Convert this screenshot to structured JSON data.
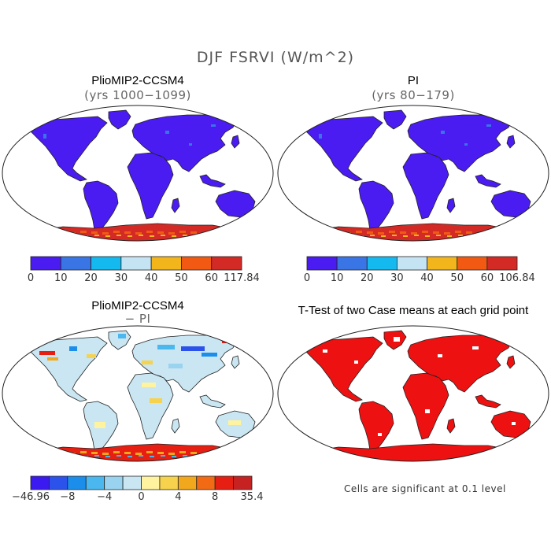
{
  "figure": {
    "title": "DJF FSRVI (W/m^2)",
    "note": "Cells are significant at 0.1 level"
  },
  "chart_data": [
    {
      "type": "heatmap",
      "title": "PlioMIP2-CCSM4",
      "subtitle": "(yrs 1000−1099)",
      "colorbar": {
        "tick_labels": [
          "0",
          "10",
          "20",
          "30",
          "40",
          "50",
          "60",
          "117.84"
        ],
        "colors": [
          "#4a1cf2",
          "#3a75e6",
          "#14b9ef",
          "#c5e4f3",
          "#f2b51c",
          "#f25a13",
          "#d42a26"
        ],
        "range": [
          0,
          117.84
        ]
      },
      "land_color": "#4a1cf2",
      "antarctica_colors": [
        "#d42a26",
        "#f25a13",
        "#f2b51c"
      ]
    },
    {
      "type": "heatmap",
      "title": "PI",
      "subtitle": "(yrs 80−179)",
      "colorbar": {
        "tick_labels": [
          "0",
          "10",
          "20",
          "30",
          "40",
          "50",
          "60",
          "106.84"
        ],
        "colors": [
          "#4a1cf2",
          "#3a75e6",
          "#14b9ef",
          "#c5e4f3",
          "#f2b51c",
          "#f25a13",
          "#d42a26"
        ],
        "range": [
          0,
          106.84
        ]
      },
      "land_color": "#4a1cf2",
      "antarctica_colors": [
        "#d42a26",
        "#f25a13",
        "#f2b51c"
      ]
    },
    {
      "type": "heatmap",
      "title": "PlioMIP2-CCSM4",
      "subtitle": "− PI",
      "colorbar": {
        "tick_labels": [
          "−46.96",
          "−8",
          "−4",
          "0",
          "4",
          "8",
          "35.4"
        ],
        "colors": [
          "#3a1af0",
          "#2b52ea",
          "#1b8eec",
          "#4ab8ee",
          "#9ad3ef",
          "#c9e6f2",
          "#fff3a0",
          "#f7d24c",
          "#f2a81c",
          "#f26a13",
          "#e61f12",
          "#c62222"
        ],
        "range": [
          -46.96,
          35.4
        ]
      },
      "land_color": "#c9e6f2",
      "antarctica_colors": [
        "#e61f12",
        "#f2a81c",
        "#4ab8ee"
      ]
    },
    {
      "type": "heatmap",
      "title": "T-Test of two Case means at each grid point",
      "subtitle": "",
      "land_color": "#ee1111",
      "antarctica_colors": [
        "#ee1111"
      ]
    }
  ]
}
